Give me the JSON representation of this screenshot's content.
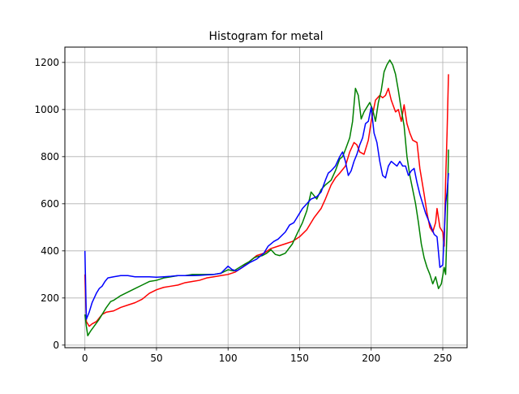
{
  "chart_data": {
    "type": "line",
    "title": "Histogram for metal",
    "xlabel": "",
    "ylabel": "",
    "xlim": [
      -14,
      267
    ],
    "ylim": [
      -11,
      1265
    ],
    "xticks": [
      0,
      50,
      100,
      150,
      200,
      250
    ],
    "yticks": [
      0,
      200,
      400,
      600,
      800,
      1000,
      1200
    ],
    "grid": true,
    "series": [
      {
        "color": "#ff0000",
        "points": [
          [
            0,
            300
          ],
          [
            1,
            100
          ],
          [
            3,
            80
          ],
          [
            5,
            90
          ],
          [
            8,
            100
          ],
          [
            12,
            130
          ],
          [
            15,
            140
          ],
          [
            20,
            145
          ],
          [
            25,
            160
          ],
          [
            30,
            170
          ],
          [
            35,
            180
          ],
          [
            40,
            195
          ],
          [
            45,
            220
          ],
          [
            50,
            235
          ],
          [
            55,
            245
          ],
          [
            60,
            250
          ],
          [
            65,
            255
          ],
          [
            70,
            265
          ],
          [
            75,
            270
          ],
          [
            80,
            275
          ],
          [
            85,
            285
          ],
          [
            90,
            290
          ],
          [
            95,
            295
          ],
          [
            100,
            300
          ],
          [
            105,
            310
          ],
          [
            110,
            330
          ],
          [
            115,
            355
          ],
          [
            120,
            380
          ],
          [
            125,
            390
          ],
          [
            130,
            410
          ],
          [
            135,
            420
          ],
          [
            140,
            430
          ],
          [
            145,
            440
          ],
          [
            150,
            460
          ],
          [
            155,
            490
          ],
          [
            160,
            540
          ],
          [
            165,
            580
          ],
          [
            168,
            620
          ],
          [
            172,
            680
          ],
          [
            175,
            710
          ],
          [
            178,
            730
          ],
          [
            182,
            760
          ],
          [
            185,
            820
          ],
          [
            188,
            860
          ],
          [
            190,
            850
          ],
          [
            192,
            820
          ],
          [
            195,
            810
          ],
          [
            198,
            870
          ],
          [
            200,
            950
          ],
          [
            203,
            1040
          ],
          [
            206,
            1060
          ],
          [
            208,
            1050
          ],
          [
            210,
            1060
          ],
          [
            212,
            1090
          ],
          [
            214,
            1040
          ],
          [
            217,
            990
          ],
          [
            219,
            1000
          ],
          [
            221,
            950
          ],
          [
            223,
            1020
          ],
          [
            225,
            940
          ],
          [
            227,
            900
          ],
          [
            229,
            870
          ],
          [
            232,
            860
          ],
          [
            234,
            750
          ],
          [
            237,
            640
          ],
          [
            239,
            560
          ],
          [
            241,
            500
          ],
          [
            243,
            480
          ],
          [
            245,
            520
          ],
          [
            246,
            580
          ],
          [
            248,
            500
          ],
          [
            250,
            480
          ],
          [
            251,
            420
          ],
          [
            252,
            700
          ],
          [
            253,
            900
          ],
          [
            254,
            1150
          ]
        ]
      },
      {
        "color": "#008000",
        "points": [
          [
            0,
            130
          ],
          [
            1,
            80
          ],
          [
            2,
            40
          ],
          [
            4,
            60
          ],
          [
            7,
            85
          ],
          [
            10,
            110
          ],
          [
            12,
            130
          ],
          [
            15,
            160
          ],
          [
            18,
            185
          ],
          [
            20,
            190
          ],
          [
            25,
            210
          ],
          [
            30,
            225
          ],
          [
            35,
            240
          ],
          [
            40,
            255
          ],
          [
            45,
            270
          ],
          [
            50,
            275
          ],
          [
            55,
            285
          ],
          [
            60,
            290
          ],
          [
            65,
            295
          ],
          [
            70,
            295
          ],
          [
            75,
            300
          ],
          [
            80,
            300
          ],
          [
            85,
            300
          ],
          [
            90,
            300
          ],
          [
            95,
            305
          ],
          [
            100,
            320
          ],
          [
            104,
            315
          ],
          [
            108,
            330
          ],
          [
            112,
            345
          ],
          [
            115,
            355
          ],
          [
            118,
            370
          ],
          [
            120,
            375
          ],
          [
            124,
            380
          ],
          [
            127,
            390
          ],
          [
            130,
            405
          ],
          [
            133,
            385
          ],
          [
            136,
            380
          ],
          [
            140,
            390
          ],
          [
            145,
            430
          ],
          [
            148,
            470
          ],
          [
            152,
            520
          ],
          [
            155,
            570
          ],
          [
            158,
            650
          ],
          [
            162,
            620
          ],
          [
            165,
            660
          ],
          [
            168,
            680
          ],
          [
            172,
            700
          ],
          [
            175,
            740
          ],
          [
            178,
            790
          ],
          [
            180,
            800
          ],
          [
            182,
            830
          ],
          [
            185,
            880
          ],
          [
            187,
            950
          ],
          [
            189,
            1090
          ],
          [
            191,
            1060
          ],
          [
            193,
            960
          ],
          [
            195,
            990
          ],
          [
            197,
            1010
          ],
          [
            199,
            1030
          ],
          [
            201,
            1000
          ],
          [
            203,
            950
          ],
          [
            205,
            1030
          ],
          [
            207,
            1080
          ],
          [
            209,
            1160
          ],
          [
            211,
            1190
          ],
          [
            213,
            1210
          ],
          [
            215,
            1190
          ],
          [
            217,
            1150
          ],
          [
            219,
            1080
          ],
          [
            221,
            1000
          ],
          [
            223,
            930
          ],
          [
            225,
            800
          ],
          [
            227,
            720
          ],
          [
            229,
            660
          ],
          [
            231,
            600
          ],
          [
            233,
            520
          ],
          [
            235,
            430
          ],
          [
            237,
            370
          ],
          [
            239,
            330
          ],
          [
            241,
            300
          ],
          [
            243,
            260
          ],
          [
            245,
            290
          ],
          [
            247,
            240
          ],
          [
            249,
            260
          ],
          [
            251,
            330
          ],
          [
            252,
            300
          ],
          [
            253,
            500
          ],
          [
            254,
            830
          ]
        ]
      },
      {
        "color": "#0000ff",
        "points": [
          [
            0,
            400
          ],
          [
            1,
            110
          ],
          [
            3,
            140
          ],
          [
            5,
            180
          ],
          [
            8,
            220
          ],
          [
            10,
            240
          ],
          [
            12,
            250
          ],
          [
            14,
            270
          ],
          [
            16,
            285
          ],
          [
            20,
            290
          ],
          [
            25,
            295
          ],
          [
            30,
            295
          ],
          [
            35,
            290
          ],
          [
            40,
            290
          ],
          [
            45,
            290
          ],
          [
            50,
            288
          ],
          [
            55,
            290
          ],
          [
            60,
            292
          ],
          [
            65,
            295
          ],
          [
            70,
            295
          ],
          [
            75,
            295
          ],
          [
            80,
            296
          ],
          [
            85,
            298
          ],
          [
            90,
            300
          ],
          [
            95,
            305
          ],
          [
            100,
            335
          ],
          [
            103,
            320
          ],
          [
            106,
            315
          ],
          [
            110,
            330
          ],
          [
            115,
            350
          ],
          [
            120,
            365
          ],
          [
            125,
            390
          ],
          [
            128,
            420
          ],
          [
            132,
            440
          ],
          [
            135,
            450
          ],
          [
            140,
            480
          ],
          [
            143,
            510
          ],
          [
            146,
            520
          ],
          [
            150,
            560
          ],
          [
            152,
            580
          ],
          [
            155,
            600
          ],
          [
            158,
            620
          ],
          [
            162,
            630
          ],
          [
            165,
            650
          ],
          [
            168,
            700
          ],
          [
            170,
            730
          ],
          [
            172,
            740
          ],
          [
            175,
            760
          ],
          [
            178,
            800
          ],
          [
            180,
            820
          ],
          [
            182,
            780
          ],
          [
            184,
            720
          ],
          [
            186,
            740
          ],
          [
            188,
            780
          ],
          [
            190,
            810
          ],
          [
            192,
            850
          ],
          [
            194,
            880
          ],
          [
            196,
            940
          ],
          [
            198,
            950
          ],
          [
            200,
            1010
          ],
          [
            202,
            900
          ],
          [
            204,
            860
          ],
          [
            206,
            780
          ],
          [
            208,
            720
          ],
          [
            210,
            710
          ],
          [
            212,
            760
          ],
          [
            214,
            780
          ],
          [
            216,
            770
          ],
          [
            218,
            760
          ],
          [
            220,
            780
          ],
          [
            222,
            760
          ],
          [
            224,
            760
          ],
          [
            226,
            720
          ],
          [
            228,
            740
          ],
          [
            230,
            750
          ],
          [
            232,
            690
          ],
          [
            234,
            640
          ],
          [
            236,
            600
          ],
          [
            238,
            560
          ],
          [
            240,
            530
          ],
          [
            242,
            500
          ],
          [
            244,
            470
          ],
          [
            246,
            460
          ],
          [
            248,
            330
          ],
          [
            250,
            340
          ],
          [
            252,
            600
          ],
          [
            253,
            650
          ],
          [
            254,
            730
          ]
        ]
      }
    ]
  }
}
